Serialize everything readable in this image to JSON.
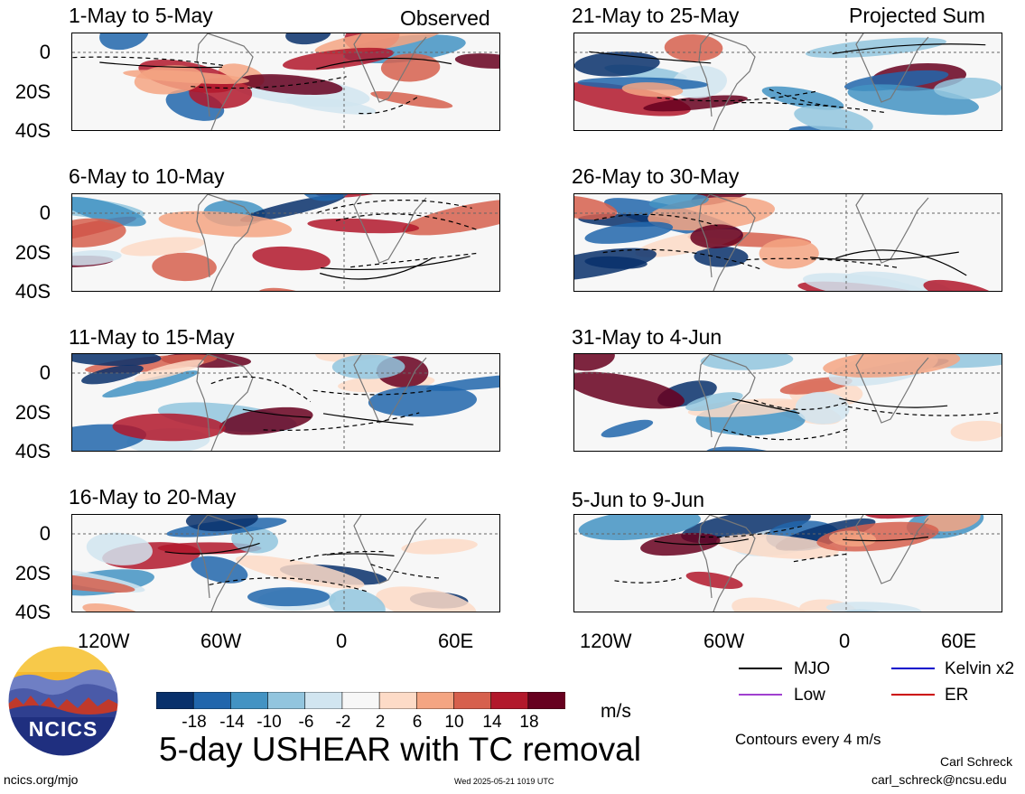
{
  "panels": [
    {
      "title": "1-May to 5-May",
      "tag": "Observed"
    },
    {
      "title": "6-May to 10-May",
      "tag": ""
    },
    {
      "title": "11-May to 15-May",
      "tag": ""
    },
    {
      "title": "16-May to 20-May",
      "tag": ""
    },
    {
      "title": "21-May to 25-May",
      "tag": "Projected Sum"
    },
    {
      "title": "26-May to 30-May",
      "tag": ""
    },
    {
      "title": "31-May to 4-Jun",
      "tag": ""
    },
    {
      "title": "5-Jun to 9-Jun",
      "tag": ""
    }
  ],
  "lat_labels": [
    "0",
    "20S",
    "40S"
  ],
  "lon_labels": [
    "120W",
    "60W",
    "0",
    "60E"
  ],
  "colorbar": {
    "colors": [
      "#08306b",
      "#2166ac",
      "#4393c3",
      "#92c5de",
      "#d1e5f0",
      "#f7f7f7",
      "#fddbc7",
      "#f4a582",
      "#d6604d",
      "#b2182b",
      "#67001f"
    ],
    "labels": [
      "-18",
      "-14",
      "-10",
      "-6",
      "-2",
      "2",
      "6",
      "10",
      "14",
      "18"
    ],
    "units": "m/s"
  },
  "legend": {
    "items": [
      {
        "label": "MJO",
        "color": "#000000"
      },
      {
        "label": "Kelvin x2",
        "color": "#0000cc"
      },
      {
        "label": "Low",
        "color": "#a040d0"
      },
      {
        "label": "ER",
        "color": "#cc0000"
      }
    ],
    "contour_note": "Contours every 4 m/s"
  },
  "main_title": "5-day USHEAR with TC removal",
  "logo_text": "NCICS",
  "footer": {
    "url": "ncics.org/mjo",
    "timestamp": "Wed 2025-05-21 1019 UTC",
    "author": "Carl Schreck",
    "email": "carl_schreck@ncsu.edu"
  }
}
